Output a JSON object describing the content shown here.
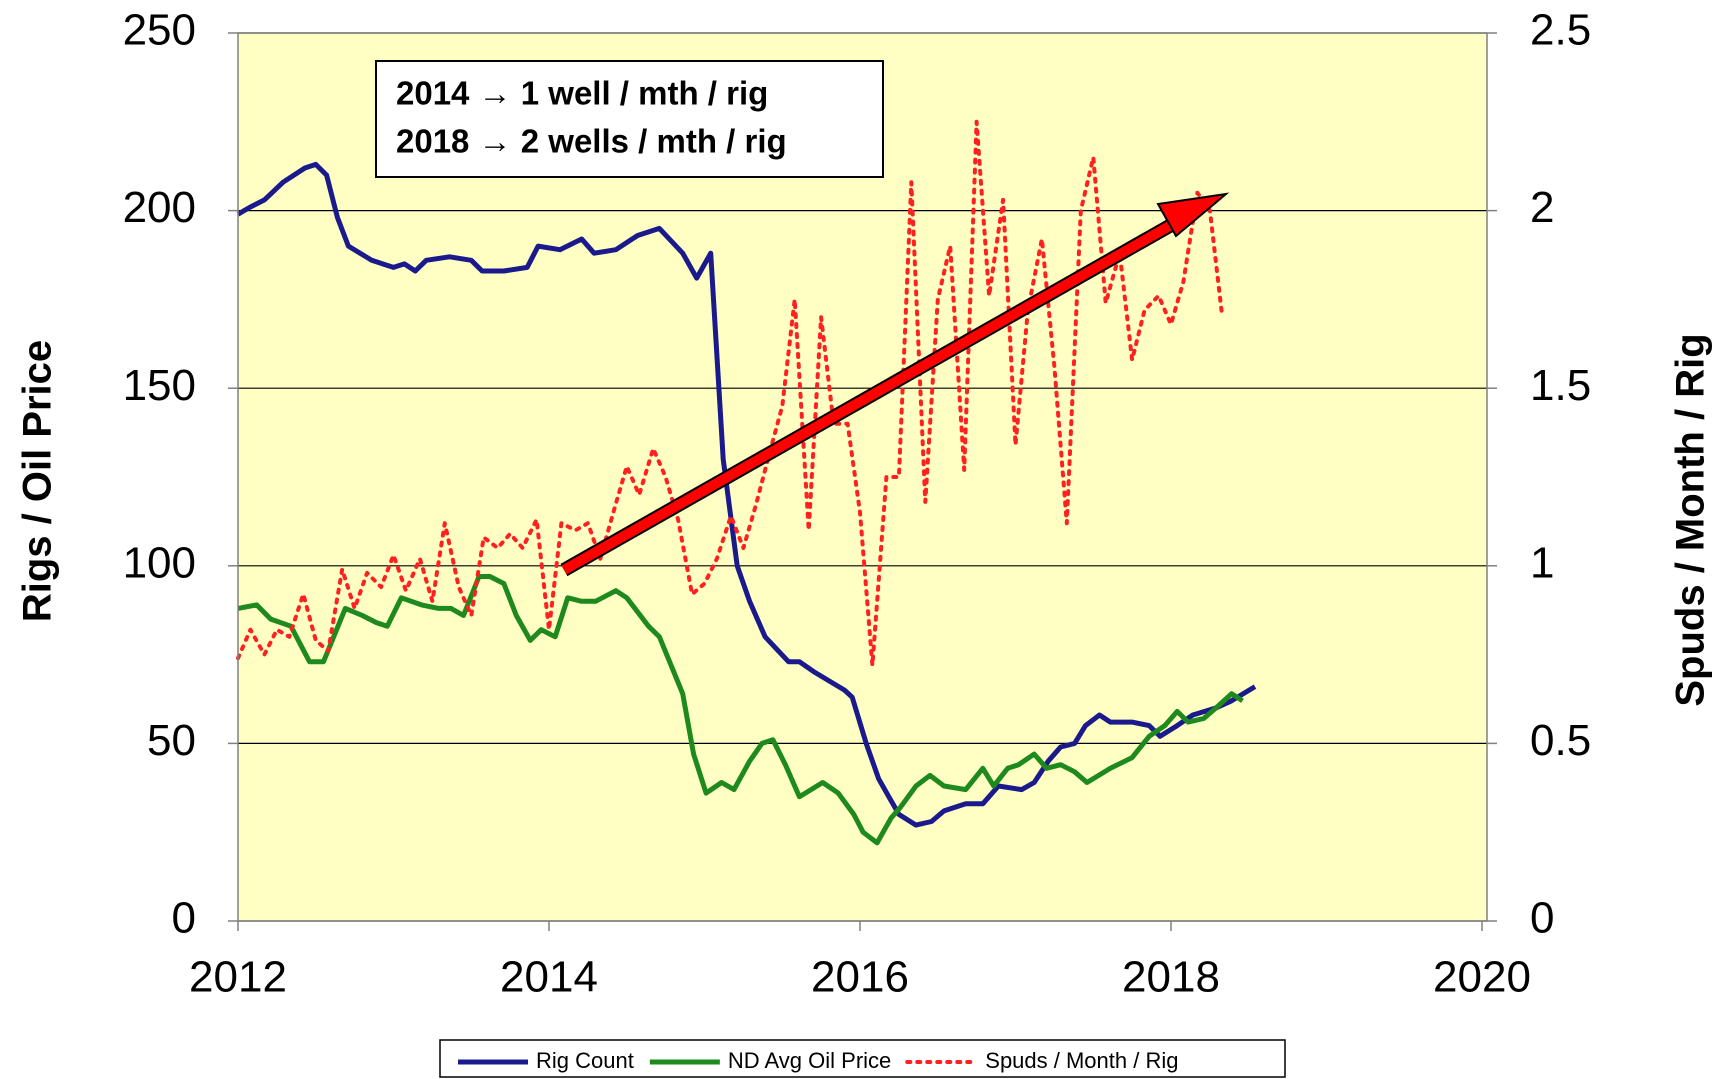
{
  "chart_data": {
    "type": "line",
    "ylabel": "Rigs / Oil Price",
    "y2label": "Spuds / Month / Rig",
    "annotations": [
      "2014 → 1 well / mth / rig",
      "2018 → 2 wells / mth / rig"
    ],
    "xlim": [
      2012,
      2020
    ],
    "xticks": [
      2012,
      2014,
      2016,
      2018,
      2020
    ],
    "ylim": [
      0,
      250
    ],
    "yticks": [
      0,
      50,
      100,
      150,
      200,
      250
    ],
    "y2lim": [
      0,
      2.5
    ],
    "y2ticks": [
      0,
      0.5,
      1,
      1.5,
      2,
      2.5
    ],
    "grid": true,
    "background": "#ffffc4",
    "legend": "bottom",
    "series": [
      {
        "name": "Rig Count",
        "color": "#1a1a8c",
        "style": "solid",
        "x": [
          2012.0,
          2012.08,
          2012.17,
          2012.29,
          2012.43,
          2012.5,
          2012.57,
          2012.64,
          2012.71,
          2012.86,
          2013.0,
          2013.07,
          2013.14,
          2013.21,
          2013.36,
          2013.5,
          2013.57,
          2013.71,
          2013.86,
          2013.93,
          2014.07,
          2014.21,
          2014.29,
          2014.43,
          2014.57,
          2014.71,
          2014.86,
          2014.95,
          2015.04,
          2015.12,
          2015.21,
          2015.29,
          2015.39,
          2015.54,
          2015.61,
          2015.71,
          2015.9,
          2015.95,
          2016.04,
          2016.12,
          2016.25,
          2016.36,
          2016.46,
          2016.54,
          2016.68,
          2016.79,
          2016.89,
          2017.04,
          2017.12,
          2017.21,
          2017.29,
          2017.38,
          2017.45,
          2017.54,
          2017.61,
          2017.75,
          2017.86,
          2017.93,
          2018.04,
          2018.14,
          2018.29,
          2018.39,
          2018.54
        ],
        "values": [
          199,
          201,
          203,
          208,
          212,
          213,
          210,
          198,
          190,
          186,
          184,
          185,
          183,
          186,
          187,
          186,
          183,
          183,
          184,
          190,
          189,
          192,
          188,
          189,
          193,
          195,
          188,
          181,
          188,
          130,
          100,
          90,
          80,
          73,
          73,
          70,
          65,
          63,
          50,
          40,
          30,
          27,
          28,
          31,
          33,
          33,
          38,
          37,
          39,
          45,
          49,
          50,
          55,
          58,
          56,
          56,
          55,
          52,
          55,
          58,
          60,
          62,
          66
        ]
      },
      {
        "name": "ND Avg Oil Price",
        "color": "#1e8a1e",
        "style": "solid",
        "x": [
          2012.0,
          2012.12,
          2012.21,
          2012.34,
          2012.46,
          2012.55,
          2012.69,
          2012.8,
          2012.89,
          2012.96,
          2013.05,
          2013.18,
          2013.29,
          2013.37,
          2013.45,
          2013.55,
          2013.62,
          2013.71,
          2013.79,
          2013.88,
          2013.95,
          2014.04,
          2014.12,
          2014.21,
          2014.3,
          2014.43,
          2014.5,
          2014.64,
          2014.71,
          2014.86,
          2014.93,
          2015.01,
          2015.11,
          2015.19,
          2015.29,
          2015.37,
          2015.44,
          2015.52,
          2015.61,
          2015.76,
          2015.86,
          2015.96,
          2016.02,
          2016.11,
          2016.2,
          2016.26,
          2016.36,
          2016.45,
          2016.54,
          2016.68,
          2016.79,
          2016.86,
          2016.95,
          2017.02,
          2017.12,
          2017.2,
          2017.29,
          2017.38,
          2017.46,
          2017.61,
          2017.75,
          2017.86,
          2017.96,
          2018.04,
          2018.11,
          2018.21,
          2018.29,
          2018.39,
          2018.46
        ],
        "values": [
          88,
          89,
          85,
          83,
          73,
          73,
          88,
          86,
          84,
          83,
          91,
          89,
          88,
          88,
          86,
          97,
          97,
          95,
          86,
          79,
          82,
          80,
          91,
          90,
          90,
          93,
          91,
          83,
          80,
          64,
          47,
          36,
          39,
          37,
          45,
          50,
          51,
          44,
          35,
          39,
          36,
          30,
          25,
          22,
          29,
          32,
          38,
          41,
          38,
          37,
          43,
          38,
          43,
          44,
          47,
          43,
          44,
          42,
          39,
          43,
          46,
          52,
          55,
          59,
          56,
          57,
          60,
          64,
          62
        ]
      },
      {
        "name": "Spuds / Month / Rig",
        "color": "#ff2020",
        "style": "dotted",
        "axis": "y2",
        "x": [
          2012.0,
          2012.08,
          2012.17,
          2012.25,
          2012.33,
          2012.42,
          2012.5,
          2012.58,
          2012.67,
          2012.75,
          2012.83,
          2012.92,
          2013.0,
          2013.08,
          2013.17,
          2013.25,
          2013.33,
          2013.42,
          2013.5,
          2013.58,
          2013.67,
          2013.75,
          2013.83,
          2013.92,
          2014.0,
          2014.08,
          2014.17,
          2014.25,
          2014.33,
          2014.42,
          2014.5,
          2014.58,
          2014.67,
          2014.75,
          2014.83,
          2014.92,
          2015.0,
          2015.08,
          2015.17,
          2015.25,
          2015.33,
          2015.42,
          2015.5,
          2015.58,
          2015.67,
          2015.75,
          2015.83,
          2015.92,
          2016.0,
          2016.08,
          2016.17,
          2016.25,
          2016.33,
          2016.42,
          2016.5,
          2016.58,
          2016.67,
          2016.75,
          2016.83,
          2016.92,
          2017.0,
          2017.08,
          2017.17,
          2017.25,
          2017.33,
          2017.42,
          2017.5,
          2017.58,
          2017.67,
          2017.75,
          2017.83,
          2017.92,
          2018.0,
          2018.08,
          2018.17,
          2018.25,
          2018.33
        ],
        "values": [
          0.74,
          0.82,
          0.75,
          0.82,
          0.8,
          0.92,
          0.79,
          0.76,
          0.99,
          0.88,
          0.98,
          0.94,
          1.03,
          0.93,
          1.02,
          0.9,
          1.12,
          0.94,
          0.86,
          1.08,
          1.05,
          1.09,
          1.05,
          1.13,
          0.82,
          1.12,
          1.1,
          1.12,
          1.02,
          1.16,
          1.28,
          1.2,
          1.33,
          1.25,
          1.13,
          0.92,
          0.95,
          1.02,
          1.14,
          1.05,
          1.17,
          1.32,
          1.45,
          1.75,
          1.1,
          1.7,
          1.4,
          1.4,
          1.15,
          0.72,
          1.25,
          1.25,
          2.08,
          1.18,
          1.75,
          1.9,
          1.27,
          2.25,
          1.76,
          2.03,
          1.34,
          1.72,
          1.92,
          1.56,
          1.12,
          2.0,
          2.15,
          1.74,
          1.88,
          1.58,
          1.72,
          1.76,
          1.68,
          1.8,
          2.05,
          2.0,
          1.7
        ]
      }
    ]
  }
}
